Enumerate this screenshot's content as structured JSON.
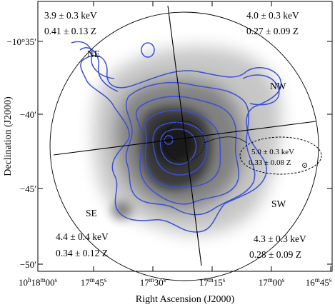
{
  "axes": {
    "xlabel": "Right Ascension (J2000)",
    "ylabel": "Declination (J2000)",
    "x_ticks": [
      {
        "h": "10",
        "hs": "h",
        "m": "18",
        "ms": "m",
        "s": "00",
        "ss": "s"
      },
      {
        "m": "17",
        "ms": "m",
        "s": "45",
        "ss": "s"
      },
      {
        "m": "17",
        "ms": "m",
        "s": "30",
        "ss": "s"
      },
      {
        "m": "17",
        "ms": "m",
        "s": "15",
        "ss": "s"
      },
      {
        "m": "17",
        "ms": "m",
        "s": "00",
        "ss": "s"
      },
      {
        "m": "16",
        "ms": "m",
        "s": "45",
        "ss": "s"
      }
    ],
    "y_ticks": [
      "−10°35′",
      "−40′",
      "−45′",
      "−50′"
    ]
  },
  "sectors": {
    "ne": {
      "label": "NE",
      "temp": "3.9 ± 0.3 keV",
      "abund": "0.41 ± 0.13 Z"
    },
    "nw": {
      "label": "NW",
      "temp": "4.0 ± 0.3 keV",
      "abund": "0.27 ± 0.09 Z"
    },
    "se": {
      "label": "SE",
      "temp": "4.4 ± 0.4 keV",
      "abund": "0.34 ± 0.12 Z"
    },
    "sw": {
      "label": "SW",
      "temp": "4.3 ± 0.3 keV",
      "abund": "0.28 ± 0.09 Z"
    },
    "west": {
      "temp": "5.0 ± 0.3 keV",
      "abund": "0.33 ± 0.08 Z",
      "symbol": "⊙"
    }
  },
  "colors": {
    "contour": "#3a4fd6",
    "frame": "#000000",
    "emission": "#000000"
  }
}
